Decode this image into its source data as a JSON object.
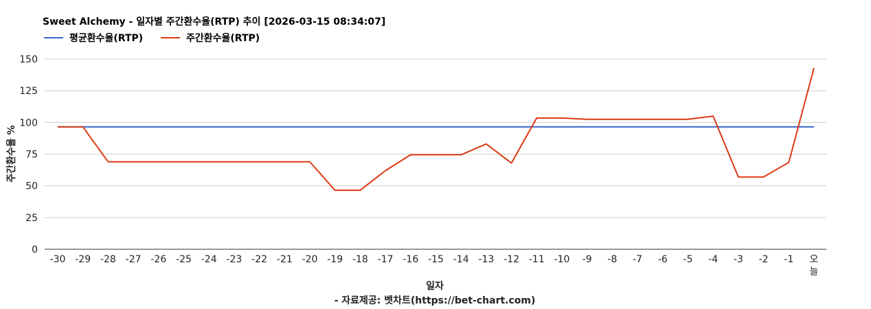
{
  "chart_data": {
    "type": "line",
    "title": "Sweet Alchemy - 일자별 주간환수율(RTP) 추이 [2026-03-15 08:34:07]",
    "xlabel": "일자",
    "ylabel": "주간환수율 %",
    "source": "- 자료제공: 벳차트(https://bet-chart.com)",
    "ylim": [
      0,
      150
    ],
    "yticks": [
      "0",
      "25",
      "50",
      "75",
      "100",
      "125",
      "150"
    ],
    "categories": [
      "-30",
      "-29",
      "-28",
      "-27",
      "-26",
      "-25",
      "-24",
      "-23",
      "-22",
      "-21",
      "-20",
      "-19",
      "-18",
      "-17",
      "-16",
      "-15",
      "-14",
      "-13",
      "-12",
      "-11",
      "-10",
      "-9",
      "-8",
      "-7",
      "-6",
      "-5",
      "-4",
      "-3",
      "-2",
      "-1",
      "오늘"
    ],
    "grid": true,
    "legend_position": "top-left",
    "series": [
      {
        "name": "평균환수율(RTP)",
        "color": "#3366cc",
        "values": [
          96.5,
          96.5,
          96.5,
          96.5,
          96.5,
          96.5,
          96.5,
          96.5,
          96.5,
          96.5,
          96.5,
          96.5,
          96.5,
          96.5,
          96.5,
          96.5,
          96.5,
          96.5,
          96.5,
          96.5,
          96.5,
          96.5,
          96.5,
          96.5,
          96.5,
          96.5,
          96.5,
          96.5,
          96.5,
          96.5,
          96.5
        ]
      },
      {
        "name": "주간환수율(RTP)",
        "color": "#dc3912",
        "values": [
          96.5,
          96.5,
          69,
          69,
          69,
          69,
          69,
          69,
          69,
          69,
          69,
          46.5,
          46.5,
          62,
          74.5,
          74.5,
          74.5,
          83,
          68,
          103.5,
          103.5,
          102.5,
          102.5,
          102.5,
          102.5,
          102.5,
          105,
          57,
          57,
          68.5,
          143
        ]
      }
    ]
  }
}
